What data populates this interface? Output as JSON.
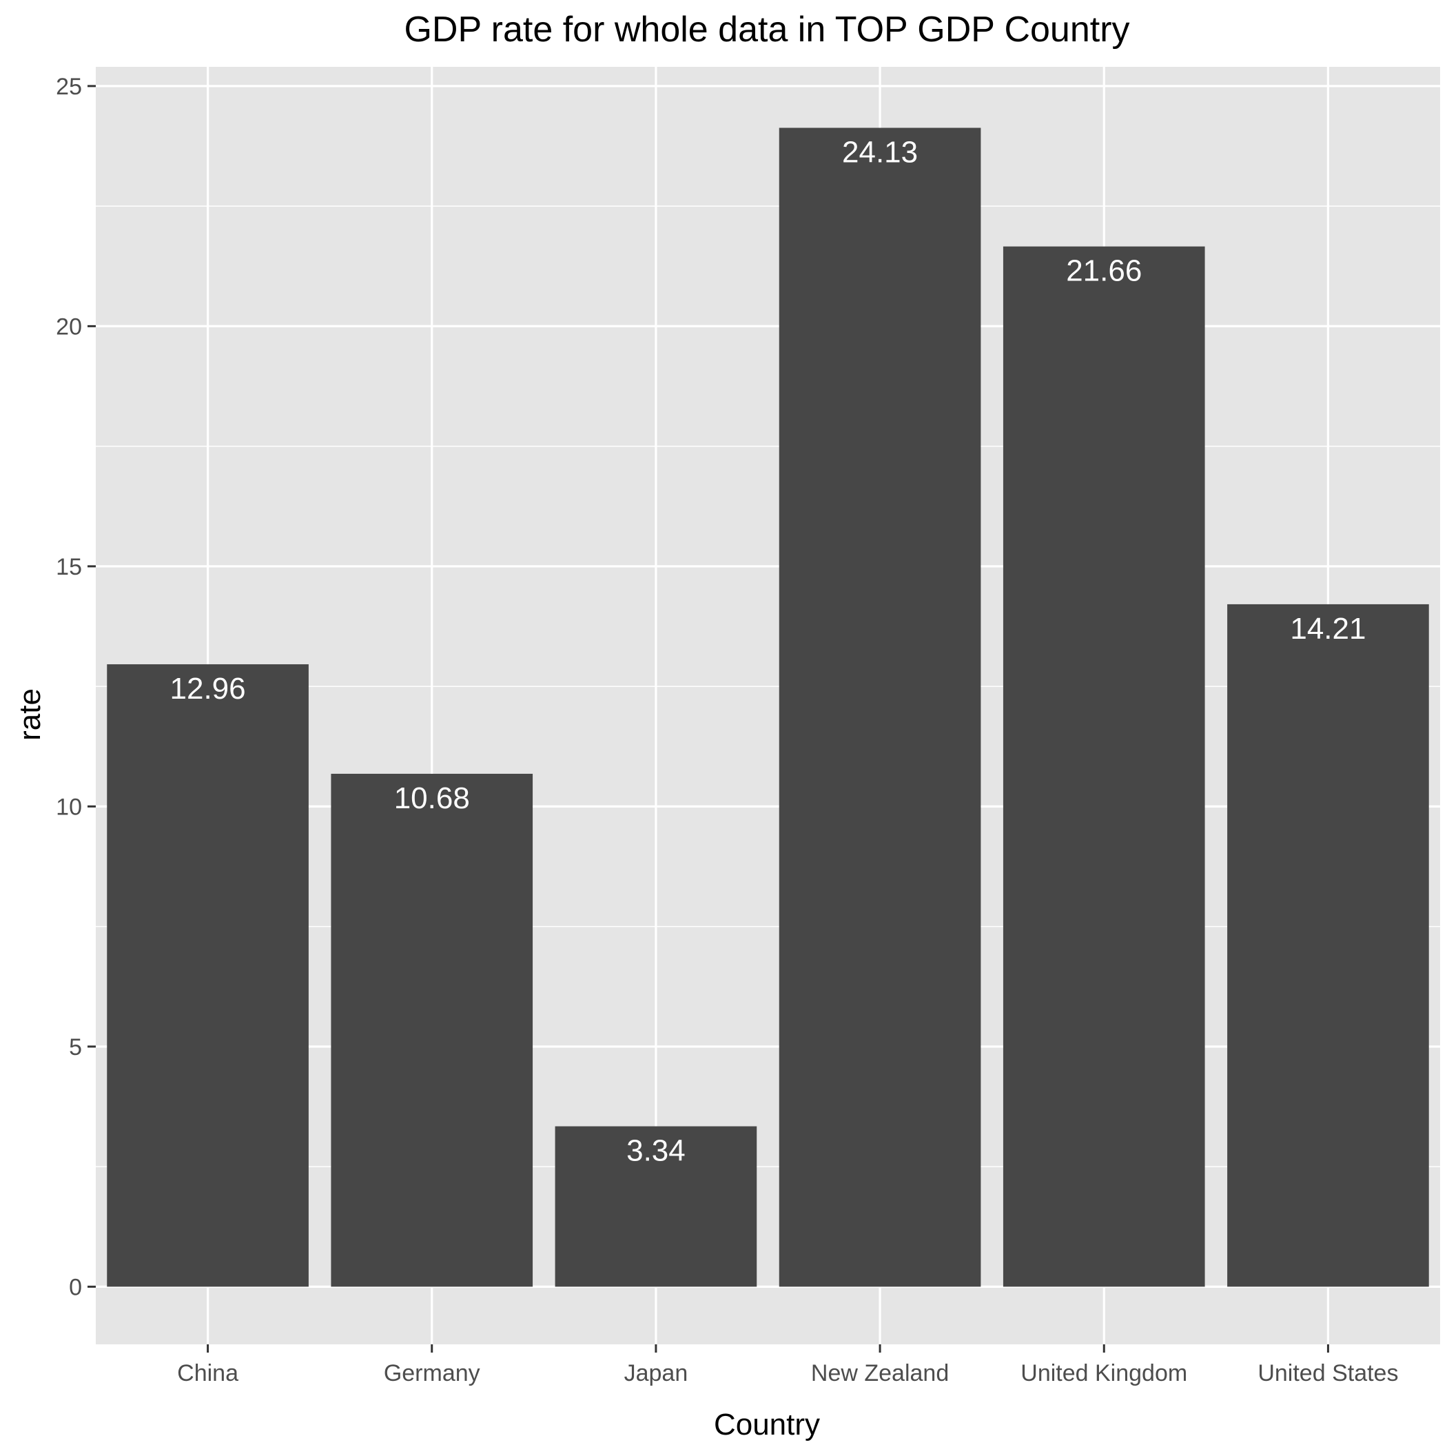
{
  "chart_data": {
    "type": "bar",
    "title": "GDP rate for whole data in TOP GDP Country",
    "xlabel": "Country",
    "ylabel": "rate",
    "categories": [
      "China",
      "Germany",
      "Japan",
      "New Zealand",
      "United Kingdom",
      "United States"
    ],
    "values": [
      12.96,
      10.68,
      3.34,
      24.13,
      21.66,
      14.21
    ],
    "value_labels": [
      "12.96",
      "10.68",
      "3.34",
      "24.13",
      "21.66",
      "14.21"
    ],
    "ylim": [
      -1.2,
      25.4
    ],
    "yticks": [
      0,
      5,
      10,
      15,
      20,
      25
    ],
    "ytick_labels": [
      "0",
      "5",
      "10",
      "15",
      "20",
      "25"
    ],
    "grid": true,
    "legend": "none",
    "colors": {
      "bar": "#474747",
      "panel": "#e5e5e5",
      "grid": "#ffffff",
      "label": "#ffffff"
    }
  }
}
